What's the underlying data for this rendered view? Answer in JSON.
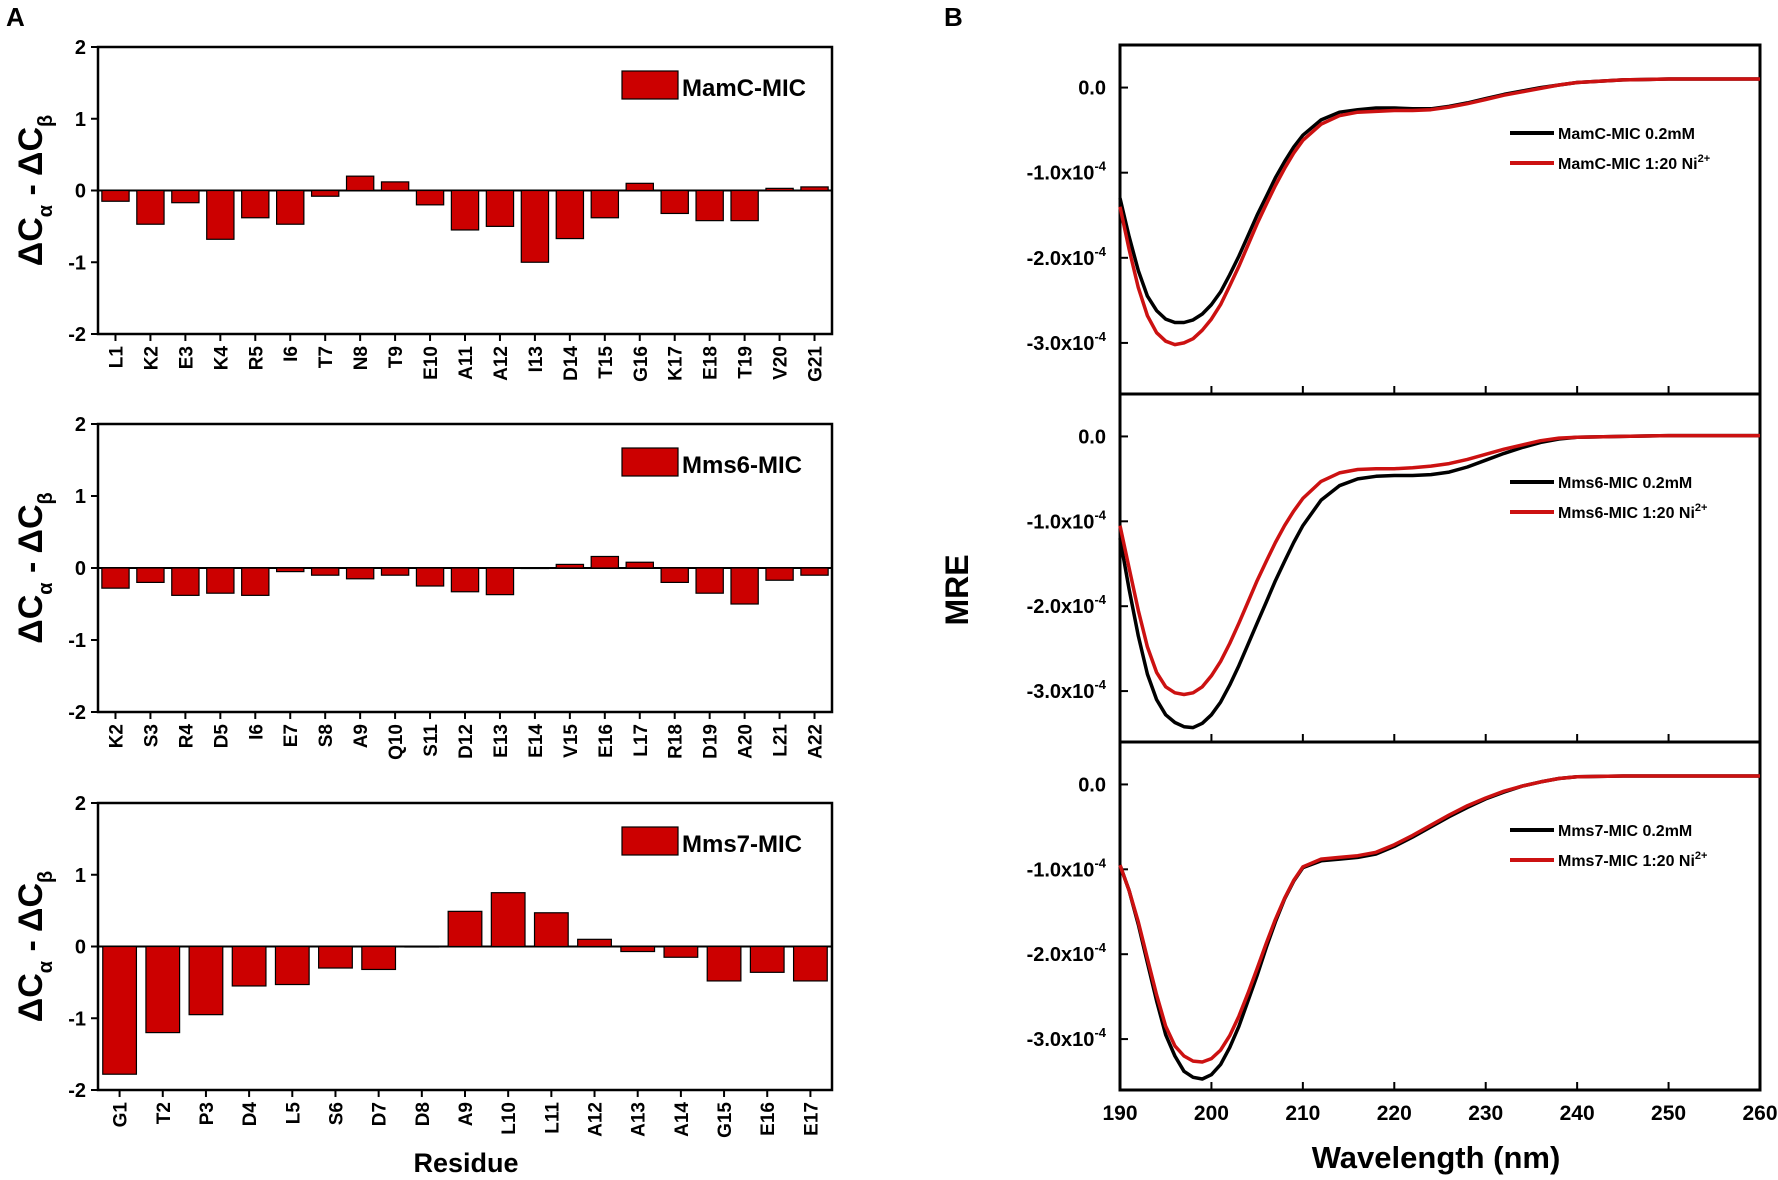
{
  "panel_labels": {
    "A": "A",
    "B": "B"
  },
  "colors": {
    "bar": "#cc0000",
    "line_black": "#000000",
    "line_red": "#cc1111"
  },
  "chart_data": [
    {
      "type": "bar",
      "id": "mamc",
      "legend": "MamC-MIC",
      "categories": [
        "L1",
        "K2",
        "E3",
        "K4",
        "R5",
        "I6",
        "T7",
        "N8",
        "T9",
        "E10",
        "A11",
        "A12",
        "I13",
        "D14",
        "T15",
        "G16",
        "K17",
        "E18",
        "T19",
        "V20",
        "G21"
      ],
      "values": [
        -0.15,
        -0.47,
        -0.17,
        -0.68,
        -0.38,
        -0.47,
        -0.08,
        0.2,
        0.12,
        -0.2,
        -0.55,
        -0.5,
        -1.0,
        -0.67,
        -0.38,
        0.1,
        -0.32,
        -0.42,
        -0.42,
        0.03,
        0.05
      ],
      "ylim": [
        -2,
        2
      ],
      "yticks": [
        "2",
        "1",
        "0",
        "-1",
        "-2"
      ],
      "ylabel": "ΔCα - ΔCβ",
      "xlabel": ""
    },
    {
      "type": "bar",
      "id": "mms6",
      "legend": "Mms6-MIC",
      "categories": [
        "K2",
        "S3",
        "R4",
        "D5",
        "I6",
        "E7",
        "S8",
        "A9",
        "Q10",
        "S11",
        "D12",
        "E13",
        "E14",
        "V15",
        "E16",
        "L17",
        "R18",
        "D19",
        "A20",
        "L21",
        "A22"
      ],
      "values": [
        -0.28,
        -0.2,
        -0.38,
        -0.35,
        -0.38,
        -0.05,
        -0.1,
        -0.15,
        -0.1,
        -0.25,
        -0.33,
        -0.37,
        0.0,
        0.05,
        0.16,
        0.08,
        -0.2,
        -0.35,
        -0.5,
        -0.17,
        -0.1
      ],
      "ylim": [
        -2,
        2
      ],
      "yticks": [
        "2",
        "1",
        "0",
        "-1",
        "-2"
      ],
      "ylabel": "ΔCα - ΔCβ",
      "xlabel": ""
    },
    {
      "type": "bar",
      "id": "mms7",
      "legend": "Mms7-MIC",
      "categories": [
        "G1",
        "T2",
        "P3",
        "D4",
        "L5",
        "S6",
        "D7",
        "D8",
        "A9",
        "L10",
        "L11",
        "A12",
        "A13",
        "A14",
        "G15",
        "E16",
        "E17"
      ],
      "values": [
        -1.78,
        -1.2,
        -0.95,
        -0.55,
        -0.53,
        -0.3,
        -0.32,
        0.0,
        0.49,
        0.75,
        0.47,
        0.1,
        -0.07,
        -0.15,
        -0.48,
        -0.36,
        -0.48
      ],
      "ylim": [
        -2,
        2
      ],
      "yticks": [
        "2",
        "1",
        "0",
        "-1",
        "-2"
      ],
      "ylabel": "ΔCα - ΔCβ",
      "xlabel": "Residue"
    },
    {
      "type": "line",
      "id": "cd-mamc",
      "xlim": [
        190,
        260
      ],
      "ylim": [
        -3.6,
        0.5
      ],
      "yticks": [
        "0.0",
        "-1.0x10-4",
        "-2.0x10-4",
        "-3.0x10-4"
      ],
      "ytick_values": [
        0,
        -1,
        -2,
        -3
      ],
      "series": [
        {
          "name": "MamC-MIC 0.2mM",
          "color": "#000000",
          "x": [
            190,
            191,
            192,
            193,
            194,
            195,
            196,
            197,
            198,
            199,
            200,
            201,
            202,
            203,
            204,
            205,
            206,
            207,
            208,
            209,
            210,
            212,
            214,
            216,
            218,
            220,
            222,
            224,
            226,
            228,
            230,
            232,
            234,
            236,
            238,
            240,
            245,
            250,
            255,
            260
          ],
          "y": [
            -1.3,
            -1.75,
            -2.15,
            -2.45,
            -2.62,
            -2.72,
            -2.76,
            -2.76,
            -2.73,
            -2.66,
            -2.55,
            -2.4,
            -2.2,
            -1.98,
            -1.74,
            -1.5,
            -1.28,
            -1.06,
            -0.87,
            -0.7,
            -0.56,
            -0.38,
            -0.29,
            -0.26,
            -0.24,
            -0.24,
            -0.25,
            -0.25,
            -0.22,
            -0.18,
            -0.13,
            -0.08,
            -0.04,
            0.0,
            0.03,
            0.06,
            0.09,
            0.1,
            0.1,
            0.1
          ]
        },
        {
          "name": "MamC-MIC 1:20 Ni2+",
          "color": "#cc1111",
          "x": [
            190,
            191,
            192,
            193,
            194,
            195,
            196,
            197,
            198,
            199,
            200,
            201,
            202,
            203,
            204,
            205,
            206,
            207,
            208,
            209,
            210,
            212,
            214,
            216,
            218,
            220,
            222,
            224,
            226,
            228,
            230,
            232,
            234,
            236,
            238,
            240,
            245,
            250,
            255,
            260
          ],
          "y": [
            -1.4,
            -1.9,
            -2.35,
            -2.68,
            -2.88,
            -2.98,
            -3.02,
            -3.0,
            -2.95,
            -2.85,
            -2.72,
            -2.55,
            -2.33,
            -2.1,
            -1.85,
            -1.6,
            -1.37,
            -1.15,
            -0.95,
            -0.77,
            -0.62,
            -0.43,
            -0.33,
            -0.29,
            -0.28,
            -0.27,
            -0.27,
            -0.26,
            -0.23,
            -0.19,
            -0.14,
            -0.09,
            -0.05,
            -0.01,
            0.03,
            0.06,
            0.09,
            0.1,
            0.1,
            0.1
          ]
        }
      ]
    },
    {
      "type": "line",
      "id": "cd-mms6",
      "xlim": [
        190,
        260
      ],
      "ylim": [
        -3.6,
        0.5
      ],
      "yticks": [
        "0.0",
        "-1.0x10-4",
        "-2.0x10-4",
        "-3.0x10-4"
      ],
      "ytick_values": [
        0,
        -1,
        -2,
        -3
      ],
      "series": [
        {
          "name": "Mms6-MIC 0.2mM",
          "color": "#000000",
          "x": [
            190,
            191,
            192,
            193,
            194,
            195,
            196,
            197,
            198,
            199,
            200,
            201,
            202,
            203,
            204,
            205,
            206,
            207,
            208,
            209,
            210,
            212,
            214,
            216,
            218,
            220,
            222,
            224,
            226,
            228,
            230,
            232,
            234,
            236,
            238,
            240,
            245,
            250,
            255,
            260
          ],
          "y": [
            -1.2,
            -1.8,
            -2.35,
            -2.8,
            -3.1,
            -3.28,
            -3.37,
            -3.42,
            -3.43,
            -3.38,
            -3.28,
            -3.13,
            -2.93,
            -2.7,
            -2.45,
            -2.2,
            -1.95,
            -1.7,
            -1.47,
            -1.25,
            -1.05,
            -0.75,
            -0.58,
            -0.5,
            -0.47,
            -0.46,
            -0.46,
            -0.45,
            -0.42,
            -0.36,
            -0.28,
            -0.2,
            -0.13,
            -0.07,
            -0.03,
            -0.01,
            0.0,
            0.01,
            0.01,
            0.01
          ]
        },
        {
          "name": "Mms6-MIC 1:20 Ni2+",
          "color": "#cc1111",
          "x": [
            190,
            191,
            192,
            193,
            194,
            195,
            196,
            197,
            198,
            199,
            200,
            201,
            202,
            203,
            204,
            205,
            206,
            207,
            208,
            209,
            210,
            212,
            214,
            216,
            218,
            220,
            222,
            224,
            226,
            228,
            230,
            232,
            234,
            236,
            238,
            240,
            245,
            250,
            255,
            260
          ],
          "y": [
            -1.05,
            -1.55,
            -2.05,
            -2.48,
            -2.78,
            -2.95,
            -3.02,
            -3.04,
            -3.02,
            -2.95,
            -2.82,
            -2.65,
            -2.44,
            -2.2,
            -1.95,
            -1.7,
            -1.47,
            -1.25,
            -1.05,
            -0.88,
            -0.73,
            -0.53,
            -0.43,
            -0.39,
            -0.38,
            -0.38,
            -0.37,
            -0.35,
            -0.32,
            -0.27,
            -0.21,
            -0.15,
            -0.1,
            -0.05,
            -0.02,
            -0.01,
            0.0,
            0.01,
            0.01,
            0.01
          ]
        }
      ]
    },
    {
      "type": "line",
      "id": "cd-mms7",
      "xlim": [
        190,
        260
      ],
      "ylim": [
        -3.6,
        0.5
      ],
      "yticks": [
        "0.0",
        "-1.0x10-4",
        "-2.0x10-4",
        "-3.0x10-4"
      ],
      "ytick_values": [
        0,
        -1,
        -2,
        -3
      ],
      "xticks": [
        "190",
        "200",
        "210",
        "220",
        "230",
        "240",
        "250",
        "260"
      ],
      "xlabel": "Wavelength (nm)",
      "ylabel": "MRE",
      "series": [
        {
          "name": "Mms7-MIC 0.2mM",
          "color": "#000000",
          "x": [
            190,
            191,
            192,
            193,
            194,
            195,
            196,
            197,
            198,
            199,
            200,
            201,
            202,
            203,
            204,
            205,
            206,
            207,
            208,
            209,
            210,
            212,
            214,
            216,
            218,
            220,
            222,
            224,
            226,
            228,
            230,
            232,
            234,
            236,
            238,
            240,
            245,
            250,
            255,
            260
          ],
          "y": [
            -0.95,
            -1.25,
            -1.65,
            -2.1,
            -2.55,
            -2.95,
            -3.2,
            -3.38,
            -3.45,
            -3.47,
            -3.42,
            -3.3,
            -3.1,
            -2.85,
            -2.55,
            -2.25,
            -1.92,
            -1.62,
            -1.35,
            -1.14,
            -0.98,
            -0.9,
            -0.88,
            -0.86,
            -0.82,
            -0.73,
            -0.62,
            -0.5,
            -0.38,
            -0.27,
            -0.17,
            -0.09,
            -0.02,
            0.03,
            0.07,
            0.09,
            0.1,
            0.1,
            0.1,
            0.1
          ]
        },
        {
          "name": "Mms7-MIC 1:20 Ni2+",
          "color": "#cc1111",
          "x": [
            190,
            191,
            192,
            193,
            194,
            195,
            196,
            197,
            198,
            199,
            200,
            201,
            202,
            203,
            204,
            205,
            206,
            207,
            208,
            209,
            210,
            212,
            214,
            216,
            218,
            220,
            222,
            224,
            226,
            228,
            230,
            232,
            234,
            236,
            238,
            240,
            245,
            250,
            255,
            260
          ],
          "y": [
            -0.95,
            -1.25,
            -1.62,
            -2.05,
            -2.48,
            -2.85,
            -3.08,
            -3.2,
            -3.26,
            -3.27,
            -3.23,
            -3.13,
            -2.96,
            -2.73,
            -2.46,
            -2.17,
            -1.87,
            -1.59,
            -1.34,
            -1.13,
            -0.97,
            -0.88,
            -0.86,
            -0.84,
            -0.8,
            -0.71,
            -0.6,
            -0.48,
            -0.36,
            -0.25,
            -0.16,
            -0.08,
            -0.02,
            0.03,
            0.07,
            0.09,
            0.1,
            0.1,
            0.1,
            0.1
          ]
        }
      ]
    }
  ],
  "cd_legend": {
    "mamc": [
      "MamC-MIC 0.2mM",
      "MamC-MIC 1:20 Ni",
      "2+"
    ],
    "mms6": [
      "Mms6-MIC 0.2mM",
      "Mms6-MIC 1:20 Ni",
      "2+"
    ],
    "mms7": [
      "Mms7-MIC 0.2mM",
      "Mms7-MIC 1:20 Ni",
      "2+"
    ]
  },
  "ylabel_parts": {
    "delta": "ΔC",
    "alpha": "α",
    "minus": " - ",
    "beta": "β"
  },
  "ytick_exp": "-4"
}
